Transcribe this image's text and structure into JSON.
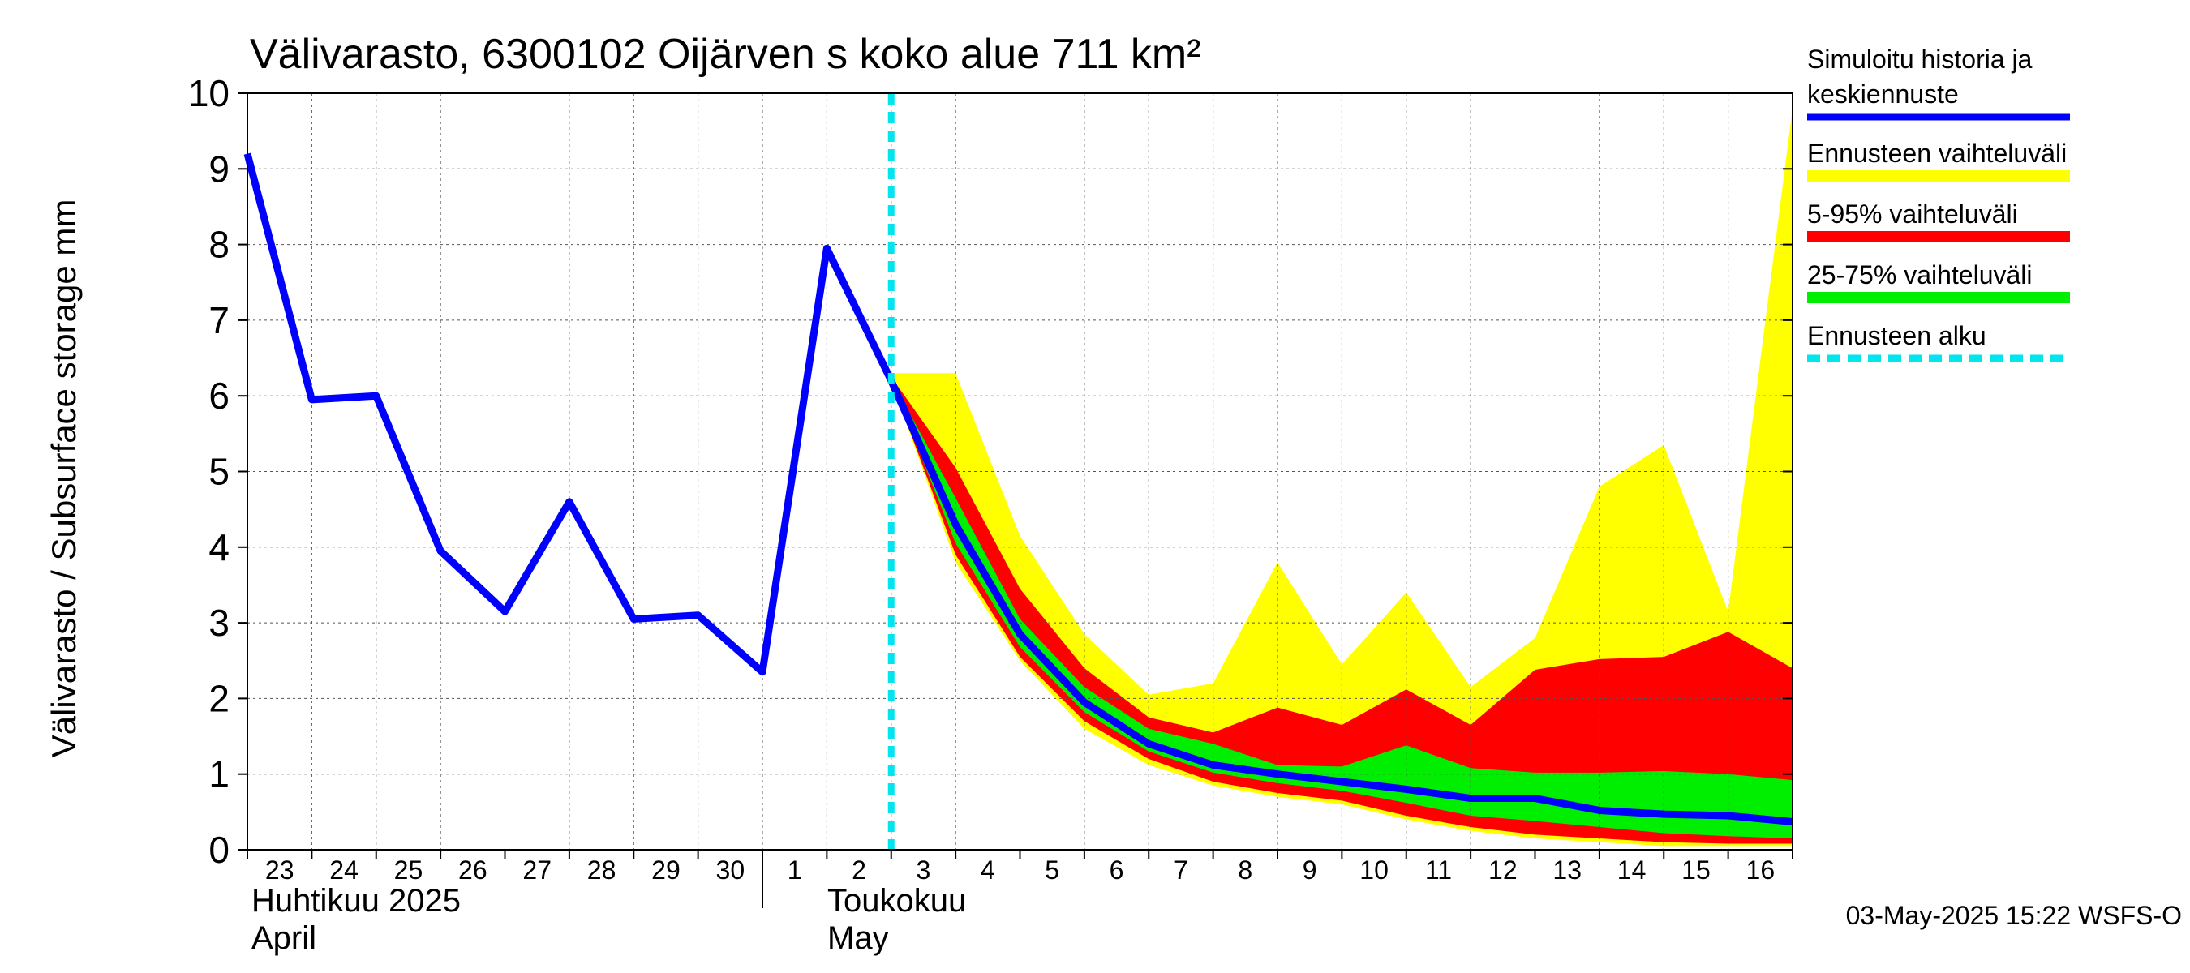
{
  "chart_data": {
    "type": "area",
    "title": "Välivarasto, 6300102 Oijärven s koko alue 711 km²",
    "ylabel": "Välivarasto / Subsurface storage  mm",
    "ylim": [
      0,
      10
    ],
    "yticks": [
      0,
      1,
      2,
      3,
      4,
      5,
      6,
      7,
      8,
      9,
      10
    ],
    "grid": true,
    "legend_placement": "right",
    "x_tick_labels": [
      "23",
      "24",
      "25",
      "26",
      "27",
      "28",
      "29",
      "30",
      "1",
      "2",
      "3",
      "4",
      "5",
      "6",
      "7",
      "8",
      "9",
      "10",
      "11",
      "12",
      "13",
      "14",
      "15",
      "16"
    ],
    "month_labels": [
      {
        "line1": "Huhtikuu  2025",
        "line2": "April"
      },
      {
        "line1": "Toukokuu",
        "line2": "May"
      }
    ],
    "forecast_start_x": 10,
    "history": {
      "name": "Simuloitu historia ja keskiennuste",
      "color": "#0000ff",
      "x": [
        0,
        1,
        2,
        3,
        4,
        5,
        6,
        7,
        8,
        9,
        10
      ],
      "values": [
        9.2,
        5.95,
        6.0,
        3.95,
        3.15,
        4.6,
        3.05,
        3.1,
        2.35,
        7.95,
        6.2
      ]
    },
    "median_forecast": {
      "x": [
        10,
        11,
        12,
        13,
        14,
        15,
        16,
        17,
        18,
        19,
        20,
        21,
        22,
        23,
        24
      ],
      "values": [
        6.2,
        4.3,
        2.85,
        1.95,
        1.4,
        1.12,
        1.0,
        0.9,
        0.8,
        0.68,
        0.68,
        0.52,
        0.47,
        0.45,
        0.37
      ]
    },
    "bands": [
      {
        "name": "Ennusteen vaihteluväli",
        "color": "#ffff00",
        "x": [
          10,
          11,
          12,
          13,
          14,
          15,
          16,
          17,
          18,
          19,
          20,
          21,
          22,
          23,
          24
        ],
        "upper": [
          6.3,
          6.3,
          4.15,
          2.85,
          2.05,
          2.2,
          3.8,
          2.45,
          3.4,
          2.15,
          2.8,
          4.8,
          5.35,
          3.15,
          9.8
        ],
        "lower": [
          6.2,
          3.8,
          2.5,
          1.6,
          1.12,
          0.85,
          0.7,
          0.6,
          0.4,
          0.25,
          0.15,
          0.1,
          0.05,
          0.05,
          0.05
        ]
      },
      {
        "name": "5-95% vaihteluväli",
        "color": "#ff0000",
        "x": [
          10,
          11,
          12,
          13,
          14,
          15,
          16,
          17,
          18,
          19,
          20,
          21,
          22,
          23,
          24
        ],
        "upper": [
          6.25,
          5.05,
          3.45,
          2.4,
          1.75,
          1.55,
          1.88,
          1.65,
          2.12,
          1.65,
          2.38,
          2.52,
          2.55,
          2.88,
          2.4
        ],
        "lower": [
          6.2,
          3.9,
          2.55,
          1.7,
          1.2,
          0.9,
          0.75,
          0.65,
          0.45,
          0.3,
          0.2,
          0.15,
          0.1,
          0.08,
          0.08
        ]
      },
      {
        "name": "25-75% vaihteluväli",
        "color": "#00ee00",
        "x": [
          10,
          11,
          12,
          13,
          14,
          15,
          16,
          17,
          18,
          19,
          20,
          21,
          22,
          23,
          24
        ],
        "upper": [
          6.22,
          4.65,
          3.05,
          2.15,
          1.6,
          1.4,
          1.12,
          1.1,
          1.38,
          1.08,
          1.02,
          1.02,
          1.04,
          1.0,
          0.92
        ],
        "lower": [
          6.2,
          4.05,
          2.68,
          1.82,
          1.3,
          1.02,
          0.88,
          0.78,
          0.62,
          0.45,
          0.38,
          0.3,
          0.22,
          0.18,
          0.15
        ]
      }
    ],
    "forecast_start_legend": "Ennusteen alku",
    "forecast_start_color": "#00e5ee",
    "legend_entries": [
      {
        "name": "Simuloitu historia ja",
        "name2": "keskiennuste",
        "color": "#0000ff",
        "style": "solid"
      },
      {
        "name": "Ennusteen vaihteluväli",
        "color": "#ffff00",
        "style": "solid"
      },
      {
        "name": "5-95% vaihteluväli",
        "color": "#ff0000",
        "style": "solid"
      },
      {
        "name": "25-75% vaihteluväli",
        "color": "#00ee00",
        "style": "solid"
      },
      {
        "name": "Ennusteen alku",
        "color": "#00e5ee",
        "style": "dashed"
      }
    ],
    "footer": "03-May-2025 15:22 WSFS-O"
  }
}
